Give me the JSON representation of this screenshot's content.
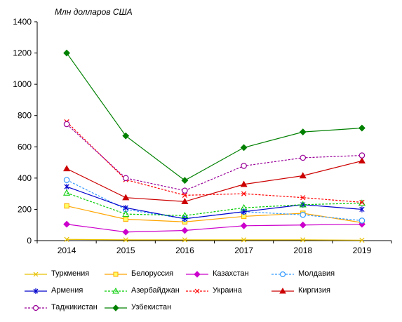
{
  "chart_data": {
    "type": "line",
    "title": "",
    "unit_label": "Млн долларов США",
    "xlabel": "",
    "ylabel": "",
    "x": [
      "2014",
      "2015",
      "2016",
      "2017",
      "2018",
      "2019"
    ],
    "ylim": [
      0,
      1400
    ],
    "yticks": [
      "0",
      "200",
      "400",
      "600",
      "800",
      "1000",
      "1200",
      "1400"
    ],
    "grid": false,
    "legend_position": "bottom",
    "series": [
      {
        "name": "Туркмения",
        "values": [
          8,
          5,
          5,
          5,
          5,
          3
        ],
        "color": "#e6c000",
        "dash": false,
        "marker": "x"
      },
      {
        "name": "Белоруссия",
        "values": [
          222,
          137,
          120,
          155,
          175,
          115
        ],
        "color": "#ffa500",
        "dash": false,
        "marker": "square"
      },
      {
        "name": "Казахстан",
        "values": [
          105,
          55,
          65,
          95,
          100,
          105
        ],
        "color": "#cc00cc",
        "dash": false,
        "marker": "diamond"
      },
      {
        "name": "Молдавия",
        "values": [
          388,
          200,
          140,
          185,
          165,
          128
        ],
        "color": "#3399ff",
        "dash": true,
        "marker": "circle"
      },
      {
        "name": "Армения",
        "values": [
          345,
          210,
          140,
          185,
          230,
          200
        ],
        "color": "#0000cc",
        "dash": false,
        "marker": "star"
      },
      {
        "name": "Азербайджан",
        "values": [
          305,
          170,
          160,
          210,
          230,
          240
        ],
        "color": "#00cc00",
        "dash": true,
        "marker": "triangle-open"
      },
      {
        "name": "Украина",
        "values": [
          760,
          390,
          290,
          300,
          275,
          245
        ],
        "color": "#ff0000",
        "dash": true,
        "marker": "x"
      },
      {
        "name": "Киргизия",
        "values": [
          460,
          275,
          250,
          360,
          415,
          510
        ],
        "color": "#cc0000",
        "dash": false,
        "marker": "triangle"
      },
      {
        "name": "Таджикистан",
        "values": [
          745,
          400,
          320,
          478,
          530,
          545
        ],
        "color": "#990099",
        "dash": true,
        "marker": "circle"
      },
      {
        "name": "Узбекистан",
        "values": [
          1200,
          670,
          385,
          595,
          695,
          720
        ],
        "color": "#008000",
        "dash": false,
        "marker": "diamond"
      }
    ]
  }
}
